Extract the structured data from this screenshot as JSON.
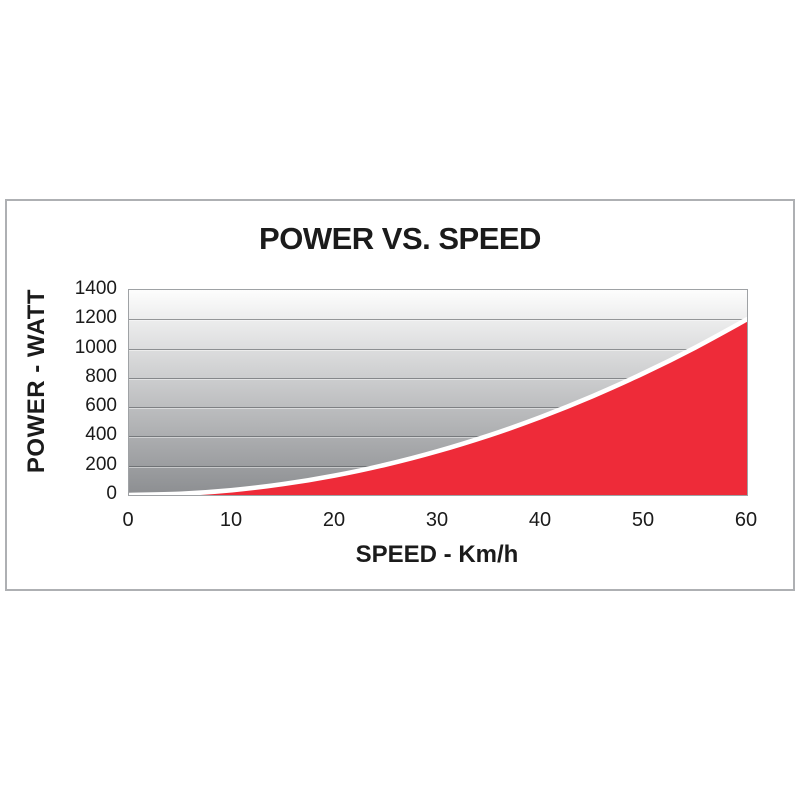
{
  "card": {
    "border_color": "#aeb0b3"
  },
  "chart_data": {
    "type": "area",
    "title": "POWER VS. SPEED",
    "xlabel": "SPEED - Km/h",
    "ylabel": "POWER - WATT",
    "x": [
      0,
      5,
      10,
      15,
      20,
      25,
      30,
      35,
      40,
      45,
      50,
      55,
      60
    ],
    "series": [
      {
        "name": "Power",
        "values": [
          0,
          8,
          33,
          75,
          133,
          208,
          300,
          408,
          533,
          675,
          833,
          1008,
          1200
        ]
      }
    ],
    "xlim": [
      0,
      60
    ],
    "ylim": [
      0,
      1400
    ],
    "xticks": [
      0,
      10,
      20,
      30,
      40,
      50,
      60
    ],
    "yticks": [
      0,
      200,
      400,
      600,
      800,
      1000,
      1200,
      1400
    ],
    "grid": true,
    "legend_visible": false,
    "colors": {
      "area_fill": "#ee2b39",
      "curve_stroke": "#ffffff",
      "plot_bg_top": "#fdfdfd",
      "plot_bg_bottom": "#8c8e91",
      "gridline_dark": "rgba(75,78,82,0.55)",
      "gridline_light": "rgba(255,255,255,0.45)",
      "text": "#1b1b1b"
    }
  }
}
